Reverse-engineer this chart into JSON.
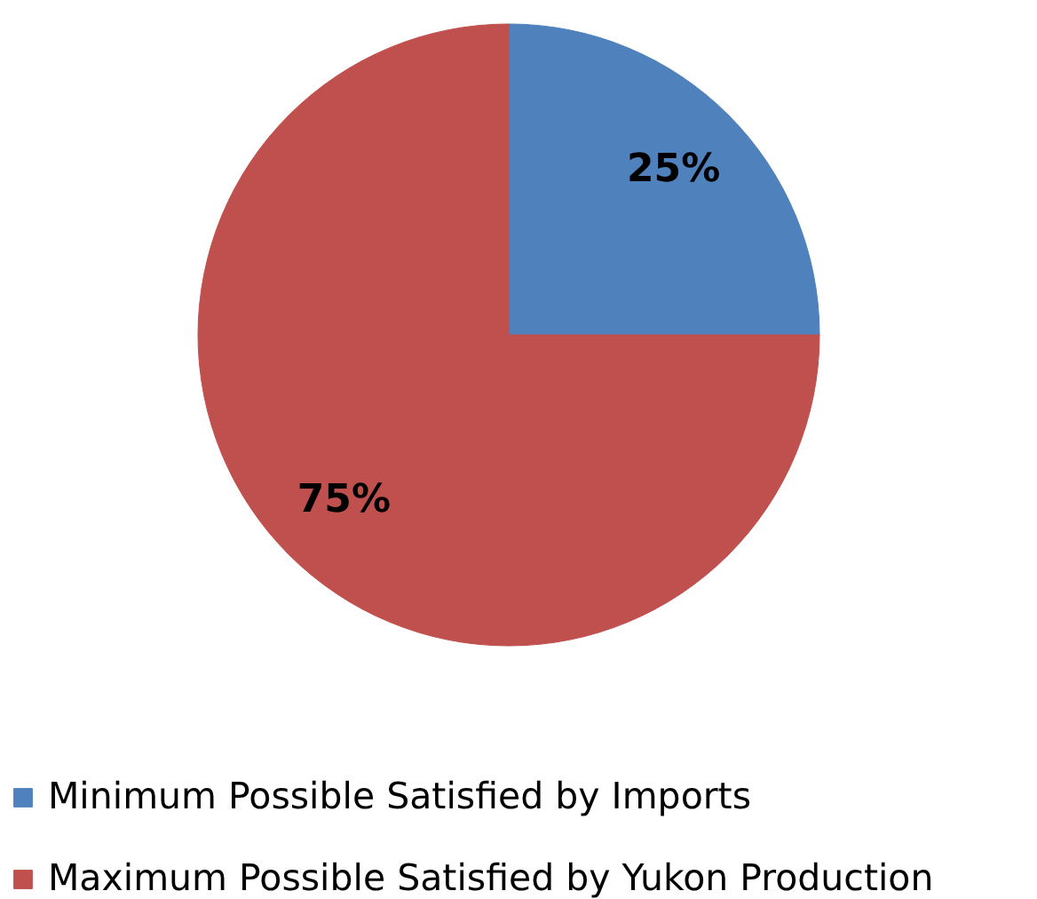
{
  "chart_data": {
    "type": "pie",
    "categories": [
      "Minimum Possible Satisfied by Imports",
      "Maximum Possible Satisfied by Yukon Production"
    ],
    "values": [
      25,
      75
    ],
    "colors": [
      "#4f81bd",
      "#c0504d"
    ],
    "value_labels": [
      "25%",
      "75%"
    ],
    "legend": "bottom"
  }
}
